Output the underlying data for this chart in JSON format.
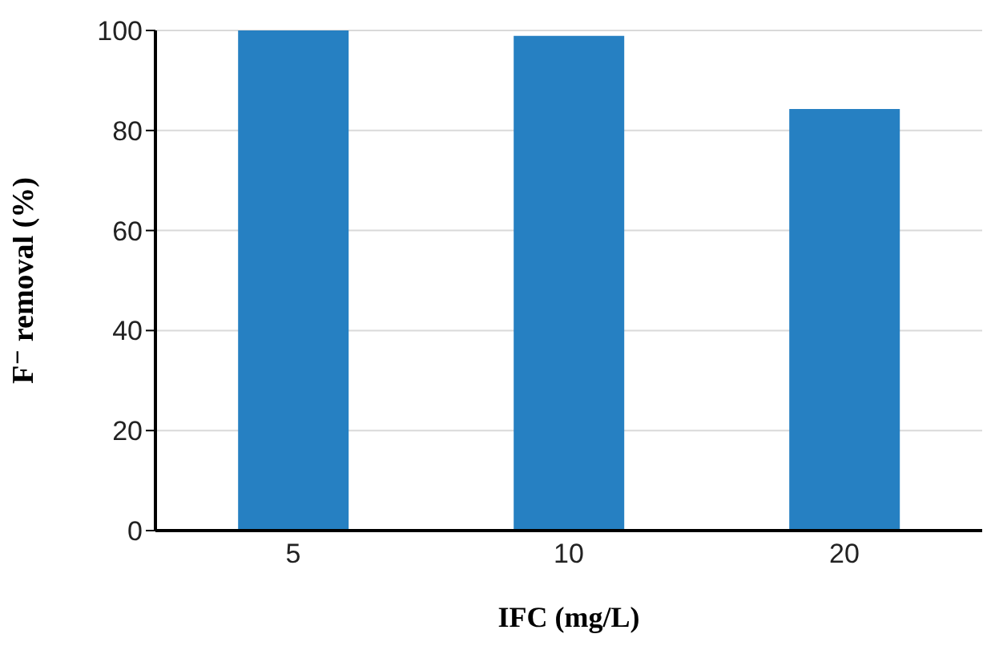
{
  "chart_data": {
    "type": "bar",
    "xlabel": "IFC (mg/L)",
    "ylabel": "F⁻ removal (%)",
    "categories": [
      "5",
      "10",
      "20"
    ],
    "values": [
      100,
      98.9,
      84.3
    ],
    "color": "#2680c2",
    "ylim": [
      0,
      100
    ],
    "yticks": [
      0,
      20,
      40,
      60,
      80,
      100
    ],
    "grid": "y"
  }
}
